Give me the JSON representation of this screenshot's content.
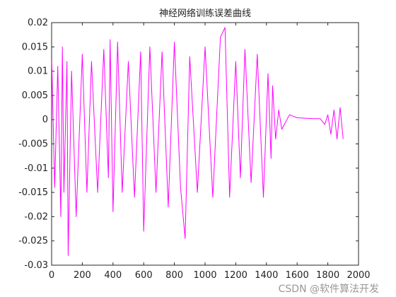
{
  "chart_data": {
    "type": "line",
    "title": "神经网络训练误差曲线",
    "xlabel": "",
    "ylabel": "",
    "xlim": [
      0,
      2000
    ],
    "ylim": [
      -0.03,
      0.02
    ],
    "x_ticks": [
      "0",
      "200",
      "400",
      "600",
      "800",
      "1000",
      "1200",
      "1400",
      "1600",
      "1800",
      "2000"
    ],
    "y_ticks": [
      "0.02",
      "0.015",
      "0.01",
      "0.005",
      "0",
      "-0.005",
      "-0.01",
      "-0.015",
      "-0.02",
      "-0.025",
      "-0.03"
    ],
    "grid": false,
    "legend": "none",
    "series": [
      {
        "color": "#ff00ff",
        "x": [
          1,
          20,
          40,
          60,
          70,
          80,
          100,
          108,
          130,
          160,
          200,
          230,
          260,
          300,
          340,
          370,
          381,
          400,
          430,
          460,
          500,
          540,
          580,
          600,
          640,
          680,
          720,
          760,
          800,
          840,
          870,
          900,
          950,
          1000,
          1050,
          1100,
          1130,
          1160,
          1200,
          1230,
          1260,
          1300,
          1340,
          1380,
          1410,
          1430,
          1440,
          1460,
          1480,
          1500,
          1550,
          1600,
          1650,
          1700,
          1750,
          1780,
          1800,
          1820,
          1840,
          1860,
          1880,
          1900
        ],
        "y": [
          0.012,
          -0.014,
          0.011,
          -0.02,
          0.015,
          -0.015,
          0.012,
          -0.028,
          0.01,
          -0.02,
          0.0135,
          -0.015,
          0.012,
          -0.015,
          0.0145,
          -0.012,
          0.0165,
          -0.019,
          0.016,
          -0.015,
          0.012,
          -0.016,
          0.014,
          -0.023,
          0.015,
          -0.015,
          0.014,
          -0.018,
          0.016,
          -0.014,
          -0.0245,
          0.013,
          -0.015,
          0.015,
          -0.016,
          0.017,
          0.019,
          -0.016,
          0.012,
          -0.012,
          0.0145,
          -0.013,
          0.0135,
          -0.016,
          0.0095,
          -0.008,
          0.007,
          -0.004,
          0.002,
          -0.002,
          0.001,
          0.0004,
          0.0003,
          0.0002,
          0.0002,
          -0.001,
          0.001,
          -0.003,
          0.002,
          -0.004,
          0.0025,
          -0.004
        ]
      }
    ]
  },
  "watermark": "CSDN @软件算法开发"
}
